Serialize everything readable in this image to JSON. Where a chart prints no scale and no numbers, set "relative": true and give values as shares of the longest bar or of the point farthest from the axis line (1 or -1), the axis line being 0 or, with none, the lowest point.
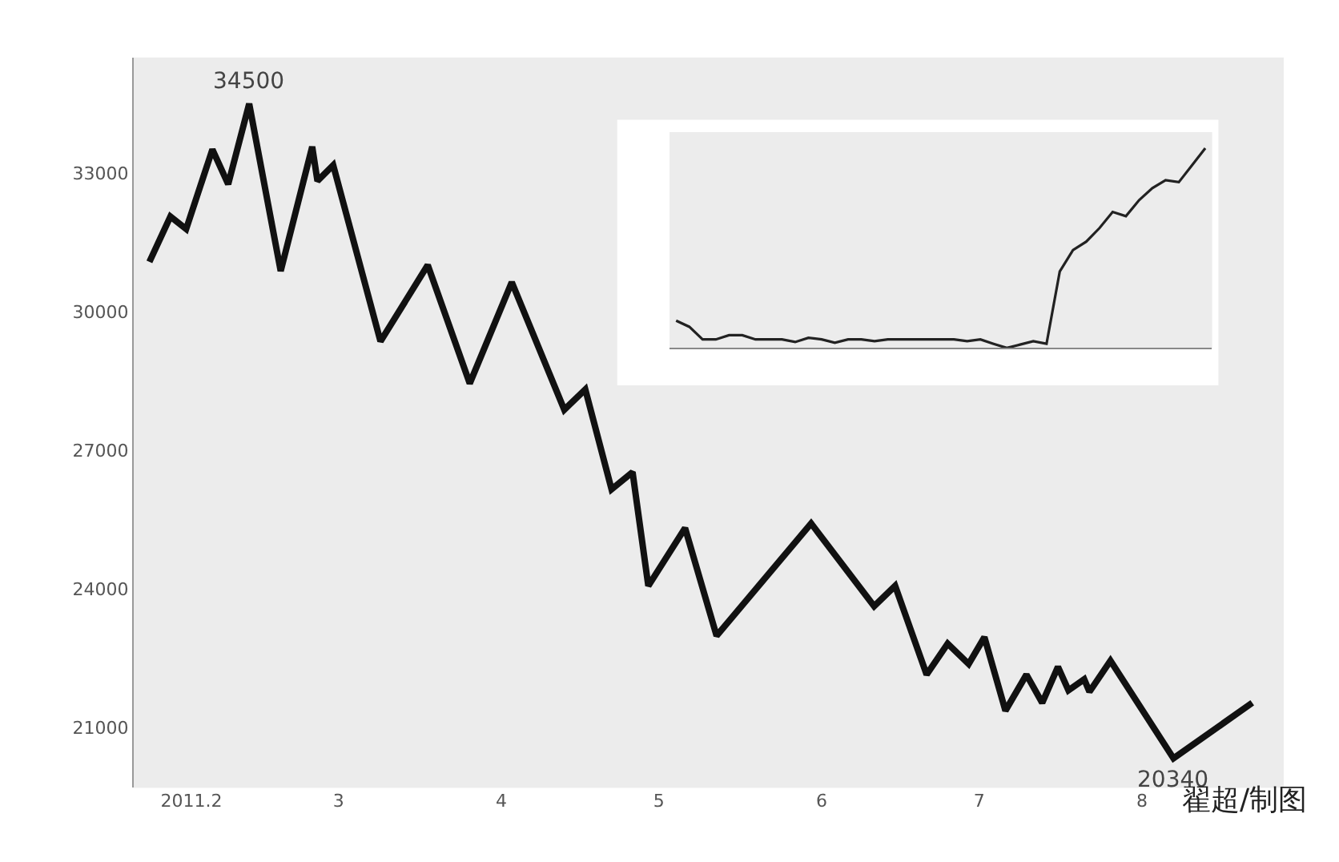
{
  "chart_data": [
    {
      "type": "line",
      "x": [
        "2011-01-24",
        "2011-01-28",
        "2011-01-31",
        "2011-02-05",
        "2011-02-08",
        "2011-02-12",
        "2011-02-18",
        "2011-02-24",
        "2011-02-25",
        "2011-02-28",
        "2011-03-09",
        "2011-03-18",
        "2011-03-26",
        "2011-04-03",
        "2011-04-13",
        "2011-04-17",
        "2011-04-22",
        "2011-04-26",
        "2011-04-29",
        "2011-05-06",
        "2011-05-12",
        "2011-05-30",
        "2011-06-11",
        "2011-06-15",
        "2011-06-21",
        "2011-06-25",
        "2011-06-29",
        "2011-07-02",
        "2011-07-06",
        "2011-07-10",
        "2011-07-13",
        "2011-07-16",
        "2011-07-18",
        "2011-07-21",
        "2011-07-22",
        "2011-07-26",
        "2011-08-07",
        "2011-08-22"
      ],
      "series": [
        {
          "color": "#111111",
          "values": [
            31080,
            32060,
            31790,
            33510,
            32760,
            34500,
            30880,
            33570,
            32830,
            33170,
            29360,
            31010,
            28450,
            30640,
            27880,
            28320,
            26160,
            26530,
            24070,
            25320,
            22990,
            25420,
            23630,
            24070,
            22150,
            22820,
            22380,
            22960,
            21370,
            22150,
            21540,
            22320,
            21810,
            22050,
            21780,
            22450,
            20340,
            21540
          ]
        }
      ],
      "xlim": [
        "2011-01-21",
        "2011-08-28"
      ],
      "ylim": [
        19700,
        35500
      ],
      "xticks": [
        {
          "value": "2011-02-01",
          "label": "2011.2"
        },
        {
          "value": "2011-03-01",
          "label": "3"
        },
        {
          "value": "2011-04-01",
          "label": "4"
        },
        {
          "value": "2011-05-01",
          "label": "5"
        },
        {
          "value": "2011-06-01",
          "label": "6"
        },
        {
          "value": "2011-07-01",
          "label": "7"
        },
        {
          "value": "2011-08-01",
          "label": "8"
        }
      ],
      "yticks": [
        21000,
        24000,
        27000,
        30000,
        33000
      ],
      "annotations": [
        {
          "text": "34500",
          "x": "2011-02-12",
          "y": 34500
        },
        {
          "text": "20340",
          "x": "2011-08-07",
          "y": 20340
        },
        "翟超/制图"
      ],
      "grid": false,
      "marker": "none",
      "line_style": "solid"
    },
    {
      "type": "line",
      "relative": true,
      "categories": [
        null,
        null,
        null,
        null,
        null,
        null,
        null,
        null,
        null,
        null,
        null,
        null,
        null,
        null,
        null,
        null,
        null,
        null,
        null,
        null,
        null,
        null,
        null,
        null,
        null,
        null,
        null,
        null,
        null,
        null,
        null,
        null,
        null,
        null,
        null,
        null,
        null,
        null,
        null,
        null,
        null
      ],
      "series": [
        {
          "color": "#222222",
          "values": [
            0.137,
            0.106,
            0.043,
            0.043,
            0.064,
            0.064,
            0.043,
            0.043,
            0.043,
            0.03,
            0.051,
            0.043,
            0.026,
            0.043,
            0.043,
            0.034,
            0.043,
            0.043,
            0.043,
            0.043,
            0.043,
            0.043,
            0.034,
            0.043,
            0.021,
            0.0,
            0.017,
            0.034,
            0.021,
            0.383,
            0.49,
            0.532,
            0.6,
            0.681,
            0.66,
            0.74,
            0.8,
            0.84,
            0.83,
            0.915,
            1.0
          ]
        }
      ],
      "grid": false
    }
  ]
}
